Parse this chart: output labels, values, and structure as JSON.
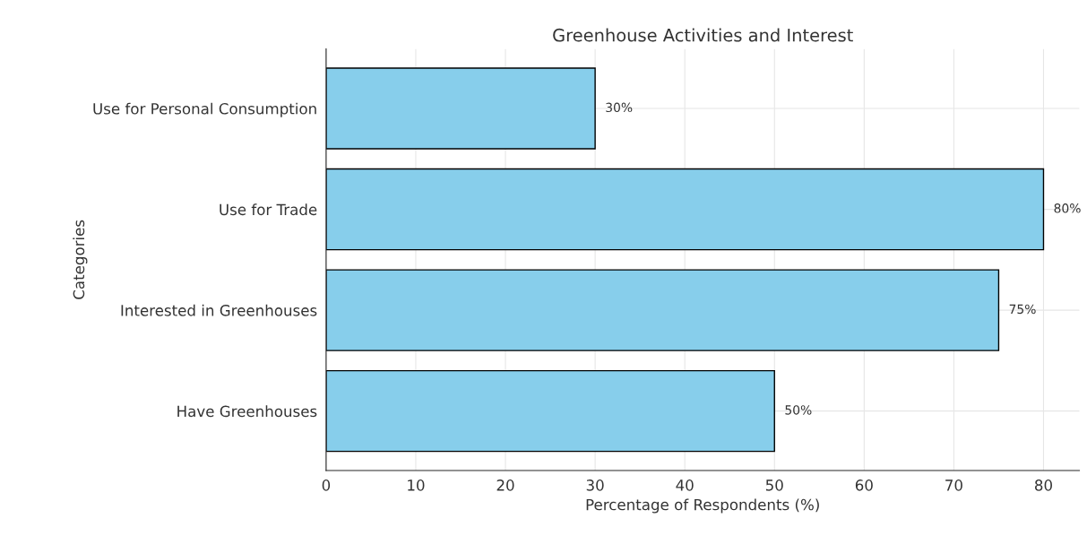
{
  "chart_data": {
    "type": "bar",
    "orientation": "horizontal",
    "title": "Greenhouse Activities and Interest",
    "xlabel": "Percentage of Respondents (%)",
    "ylabel": "Categories",
    "categories": [
      "Use for Personal Consumption",
      "Use for Trade",
      "Interested in Greenhouses",
      "Have Greenhouses"
    ],
    "values": [
      30,
      80,
      75,
      50
    ],
    "color": "#87ceeb",
    "value_labels": [
      "30%",
      "80%",
      "75%",
      "50%"
    ],
    "xlim": [
      0,
      84
    ],
    "xticks": [
      0,
      10,
      20,
      30,
      40,
      50,
      60,
      70,
      80
    ],
    "grid": true
  }
}
